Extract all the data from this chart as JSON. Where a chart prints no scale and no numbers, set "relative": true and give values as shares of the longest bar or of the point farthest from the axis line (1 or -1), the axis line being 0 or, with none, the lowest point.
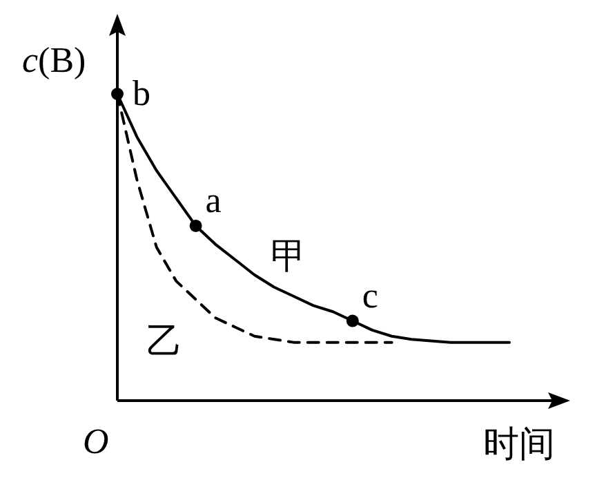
{
  "chart_data": {
    "type": "line",
    "relative": true,
    "xlabel": "时间",
    "ylabel": "*c*(B)",
    "categories": [
      null,
      null,
      null,
      null,
      null,
      null,
      null,
      null,
      null,
      null,
      null,
      null,
      null,
      null,
      null,
      null,
      null,
      null,
      null,
      null,
      null
    ],
    "series": [
      {
        "name": "甲",
        "color": "#000000",
        "line_style": "solid",
        "values": [
          1.0,
          0.86,
          0.75,
          0.66,
          0.57,
          0.51,
          0.46,
          0.41,
          0.37,
          0.34,
          0.31,
          0.29,
          0.26,
          0.23,
          0.21,
          0.2,
          0.195,
          0.19,
          0.19,
          0.19,
          0.19
        ]
      },
      {
        "name": "乙",
        "color": "#000000",
        "line_style": "dashed",
        "values": [
          1.0,
          0.72,
          0.5,
          0.39,
          0.33,
          0.27,
          0.24,
          0.21,
          0.2,
          0.19,
          0.19,
          0.19,
          0.19,
          0.19,
          0.19,
          null,
          null,
          null,
          null,
          null,
          null
        ]
      }
    ],
    "annotations": [
      "O",
      "b",
      "a",
      "c"
    ],
    "marker": "none"
  }
}
